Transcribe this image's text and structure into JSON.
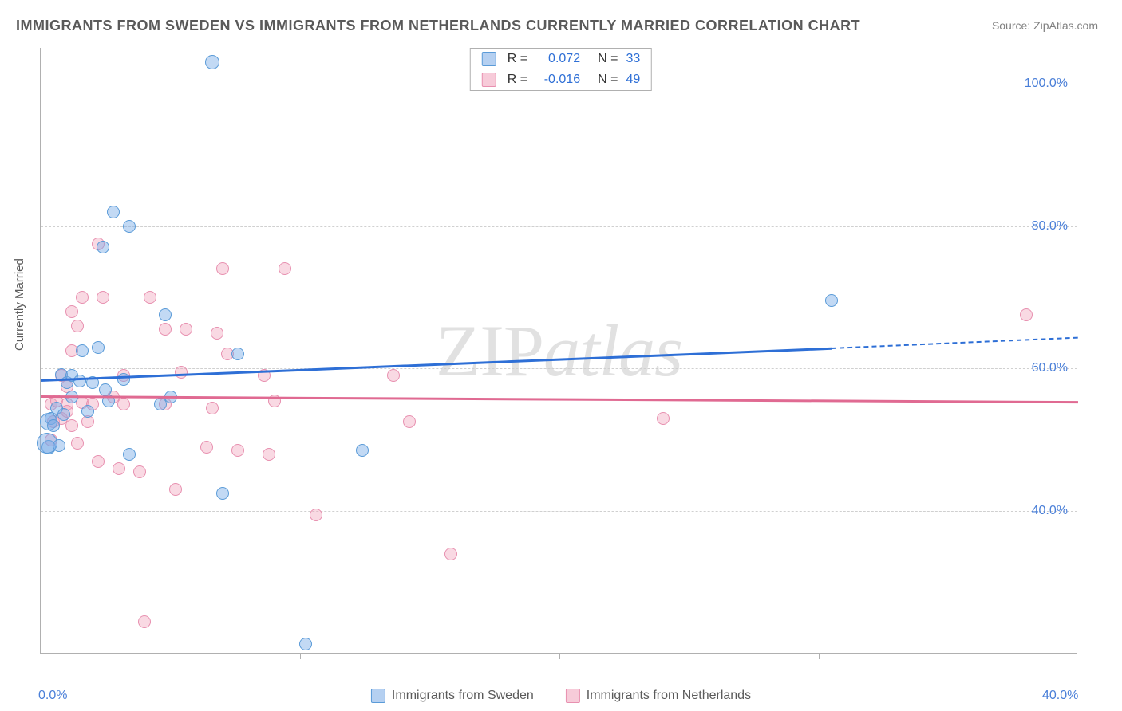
{
  "title": "IMMIGRANTS FROM SWEDEN VS IMMIGRANTS FROM NETHERLANDS CURRENTLY MARRIED CORRELATION CHART",
  "source": "Source: ZipAtlas.com",
  "watermark_a": "ZIP",
  "watermark_b": "atlas",
  "chart": {
    "type": "scatter",
    "background_color": "#ffffff",
    "grid_color": "#d0d0d0",
    "axis_color": "#b0b0b0",
    "tick_label_color": "#4a7fd8",
    "text_color": "#5a5a5a",
    "ylabel": "Currently Married",
    "xlim": [
      0,
      40
    ],
    "ylim": [
      20,
      105
    ],
    "x_ticks": [
      0,
      40
    ],
    "x_tick_labels": [
      "0.0%",
      "40.0%"
    ],
    "x_tick_marks": [
      10,
      20,
      30
    ],
    "y_ticks": [
      40,
      60,
      80,
      100
    ],
    "y_tick_labels": [
      "40.0%",
      "60.0%",
      "80.0%",
      "100.0%"
    ],
    "title_fontsize": 18,
    "label_fontsize": 15,
    "tick_fontsize": 16,
    "series": [
      {
        "name": "Immigrants from Sweden",
        "color_fill": "rgba(120,170,230,0.45)",
        "color_border": "#5a9bd8",
        "marker_size": 16,
        "r": "0.072",
        "n": "33",
        "trend": {
          "x0": 0,
          "y0": 58.5,
          "x1": 30.5,
          "y1": 63.0,
          "dash_to_x": 40,
          "dash_to_y": 64.5,
          "color": "#2e6fd6"
        },
        "points": [
          {
            "x": 6.6,
            "y": 103.0,
            "s": 18
          },
          {
            "x": 2.8,
            "y": 82.0,
            "s": 16
          },
          {
            "x": 3.4,
            "y": 80.0,
            "s": 16
          },
          {
            "x": 2.4,
            "y": 77.0,
            "s": 16
          },
          {
            "x": 4.8,
            "y": 67.5,
            "s": 16
          },
          {
            "x": 1.6,
            "y": 62.5,
            "s": 16
          },
          {
            "x": 2.2,
            "y": 63.0,
            "s": 16
          },
          {
            "x": 0.8,
            "y": 59.2,
            "s": 16
          },
          {
            "x": 1.0,
            "y": 58.0,
            "s": 16
          },
          {
            "x": 1.2,
            "y": 59.0,
            "s": 16
          },
          {
            "x": 1.5,
            "y": 58.2,
            "s": 16
          },
          {
            "x": 2.0,
            "y": 58.0,
            "s": 16
          },
          {
            "x": 2.5,
            "y": 57.0,
            "s": 16
          },
          {
            "x": 3.2,
            "y": 58.5,
            "s": 16
          },
          {
            "x": 1.2,
            "y": 56.0,
            "s": 16
          },
          {
            "x": 0.6,
            "y": 54.5,
            "s": 16
          },
          {
            "x": 0.4,
            "y": 53.0,
            "s": 16
          },
          {
            "x": 0.3,
            "y": 52.5,
            "s": 22
          },
          {
            "x": 0.5,
            "y": 52.0,
            "s": 16
          },
          {
            "x": 0.9,
            "y": 53.5,
            "s": 16
          },
          {
            "x": 1.8,
            "y": 54.0,
            "s": 16
          },
          {
            "x": 2.6,
            "y": 55.5,
            "s": 16
          },
          {
            "x": 3.4,
            "y": 48.0,
            "s": 16
          },
          {
            "x": 4.6,
            "y": 55.0,
            "s": 16
          },
          {
            "x": 5.0,
            "y": 56.0,
            "s": 16
          },
          {
            "x": 7.6,
            "y": 62.0,
            "s": 16
          },
          {
            "x": 7.0,
            "y": 42.5,
            "s": 16
          },
          {
            "x": 12.4,
            "y": 48.5,
            "s": 16
          },
          {
            "x": 30.5,
            "y": 69.5,
            "s": 16
          },
          {
            "x": 10.2,
            "y": 21.3,
            "s": 16
          },
          {
            "x": 0.3,
            "y": 49.0,
            "s": 18
          },
          {
            "x": 0.25,
            "y": 49.5,
            "s": 26
          },
          {
            "x": 0.7,
            "y": 49.2,
            "s": 16
          }
        ]
      },
      {
        "name": "Immigrants from Netherlands",
        "color_fill": "rgba(240,160,185,0.40)",
        "color_border": "#e890b0",
        "marker_size": 16,
        "r": "-0.016",
        "n": "49",
        "trend": {
          "x0": 0,
          "y0": 56.2,
          "x1": 40,
          "y1": 55.4,
          "color": "#e06a92"
        },
        "points": [
          {
            "x": 2.2,
            "y": 77.5,
            "s": 16
          },
          {
            "x": 7.0,
            "y": 74.0,
            "s": 16
          },
          {
            "x": 9.4,
            "y": 74.0,
            "s": 16
          },
          {
            "x": 1.6,
            "y": 70.0,
            "s": 16
          },
          {
            "x": 2.4,
            "y": 70.0,
            "s": 16
          },
          {
            "x": 4.2,
            "y": 70.0,
            "s": 16
          },
          {
            "x": 1.2,
            "y": 68.0,
            "s": 16
          },
          {
            "x": 1.4,
            "y": 66.0,
            "s": 16
          },
          {
            "x": 4.8,
            "y": 65.5,
            "s": 16
          },
          {
            "x": 5.6,
            "y": 65.5,
            "s": 16
          },
          {
            "x": 6.8,
            "y": 65.0,
            "s": 16
          },
          {
            "x": 7.2,
            "y": 62.0,
            "s": 16
          },
          {
            "x": 0.8,
            "y": 59.0,
            "s": 16
          },
          {
            "x": 1.0,
            "y": 57.5,
            "s": 16
          },
          {
            "x": 3.2,
            "y": 59.0,
            "s": 16
          },
          {
            "x": 5.4,
            "y": 59.5,
            "s": 16
          },
          {
            "x": 8.6,
            "y": 59.0,
            "s": 16
          },
          {
            "x": 13.6,
            "y": 59.0,
            "s": 16
          },
          {
            "x": 0.4,
            "y": 55.0,
            "s": 16
          },
          {
            "x": 0.6,
            "y": 55.5,
            "s": 16
          },
          {
            "x": 1.0,
            "y": 55.0,
            "s": 16
          },
          {
            "x": 1.6,
            "y": 55.2,
            "s": 16
          },
          {
            "x": 2.0,
            "y": 55.0,
            "s": 16
          },
          {
            "x": 2.8,
            "y": 56.0,
            "s": 16
          },
          {
            "x": 3.2,
            "y": 55.0,
            "s": 16
          },
          {
            "x": 4.8,
            "y": 55.0,
            "s": 16
          },
          {
            "x": 6.6,
            "y": 54.5,
            "s": 16
          },
          {
            "x": 9.0,
            "y": 55.5,
            "s": 16
          },
          {
            "x": 0.5,
            "y": 52.5,
            "s": 16
          },
          {
            "x": 0.8,
            "y": 53.0,
            "s": 16
          },
          {
            "x": 1.2,
            "y": 52.0,
            "s": 16
          },
          {
            "x": 1.8,
            "y": 52.5,
            "s": 16
          },
          {
            "x": 14.2,
            "y": 52.5,
            "s": 16
          },
          {
            "x": 24.0,
            "y": 53.0,
            "s": 16
          },
          {
            "x": 0.4,
            "y": 50.0,
            "s": 16
          },
          {
            "x": 1.4,
            "y": 49.5,
            "s": 16
          },
          {
            "x": 2.2,
            "y": 47.0,
            "s": 16
          },
          {
            "x": 6.4,
            "y": 49.0,
            "s": 16
          },
          {
            "x": 7.6,
            "y": 48.5,
            "s": 16
          },
          {
            "x": 8.8,
            "y": 48.0,
            "s": 16
          },
          {
            "x": 3.0,
            "y": 46.0,
            "s": 16
          },
          {
            "x": 3.8,
            "y": 45.5,
            "s": 16
          },
          {
            "x": 5.2,
            "y": 43.0,
            "s": 16
          },
          {
            "x": 10.6,
            "y": 39.5,
            "s": 16
          },
          {
            "x": 15.8,
            "y": 34.0,
            "s": 16
          },
          {
            "x": 4.0,
            "y": 24.5,
            "s": 16
          },
          {
            "x": 38.0,
            "y": 67.5,
            "s": 16
          },
          {
            "x": 1.2,
            "y": 62.5,
            "s": 16
          },
          {
            "x": 1.0,
            "y": 54.0,
            "s": 16
          }
        ]
      }
    ]
  },
  "legend_top": [
    {
      "swatch": "sw-blue",
      "r": "0.072",
      "n": "33"
    },
    {
      "swatch": "sw-pink",
      "r": "-0.016",
      "n": "49"
    }
  ],
  "legend_bottom": [
    {
      "swatch": "sw-blue",
      "label": "Immigrants from Sweden"
    },
    {
      "swatch": "sw-pink",
      "label": "Immigrants from Netherlands"
    }
  ]
}
